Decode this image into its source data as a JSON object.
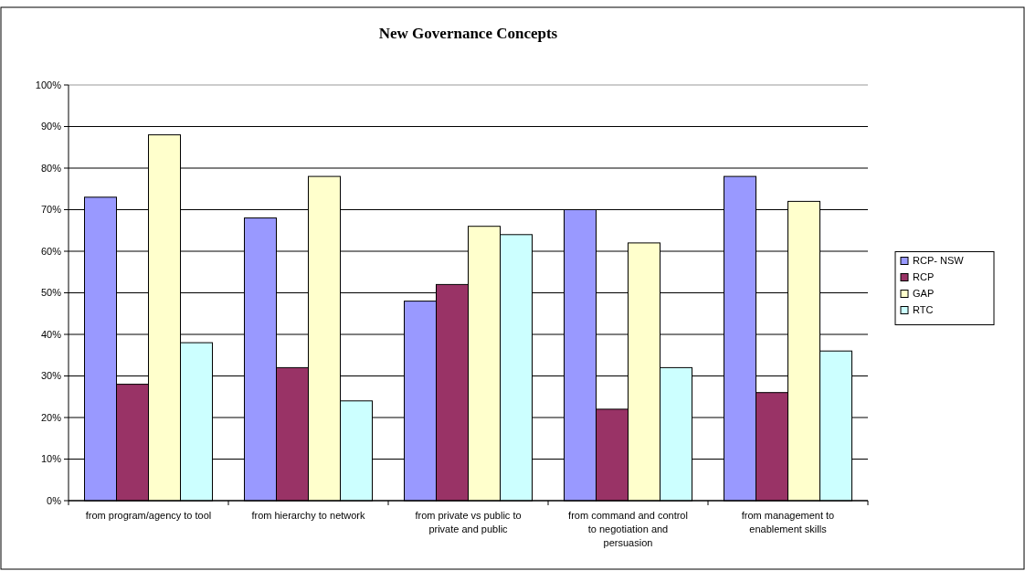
{
  "chart_data": {
    "type": "bar",
    "title": "New Governance Concepts",
    "categories": [
      "from program/agency to tool",
      "from hierarchy to network",
      "from private vs public to private and public",
      "from command and control to negotiation and persuasion",
      "from management to enablement skills"
    ],
    "series": [
      {
        "name": "RCP- NSW",
        "color": "#9999ff",
        "values": [
          73,
          68,
          48,
          70,
          78
        ]
      },
      {
        "name": "RCP",
        "color": "#993366",
        "values": [
          28,
          32,
          52,
          22,
          26
        ]
      },
      {
        "name": "GAP",
        "color": "#ffffcc",
        "values": [
          88,
          78,
          66,
          62,
          72
        ]
      },
      {
        "name": "RTC",
        "color": "#ccffff",
        "values": [
          38,
          24,
          64,
          32,
          36
        ]
      }
    ],
    "ylim": [
      0,
      100
    ],
    "yticks": [
      {
        "value": 0,
        "label": "0%"
      },
      {
        "value": 10,
        "label": "10%"
      },
      {
        "value": 20,
        "label": "20%"
      },
      {
        "value": 30,
        "label": "30%"
      },
      {
        "value": 40,
        "label": "40%"
      },
      {
        "value": 50,
        "label": "50%"
      },
      {
        "value": 60,
        "label": "60%"
      },
      {
        "value": 70,
        "label": "70%"
      },
      {
        "value": 80,
        "label": "80%"
      },
      {
        "value": 90,
        "label": "90%"
      },
      {
        "value": 100,
        "label": "100%"
      }
    ],
    "grid": "y",
    "legend": "right"
  }
}
